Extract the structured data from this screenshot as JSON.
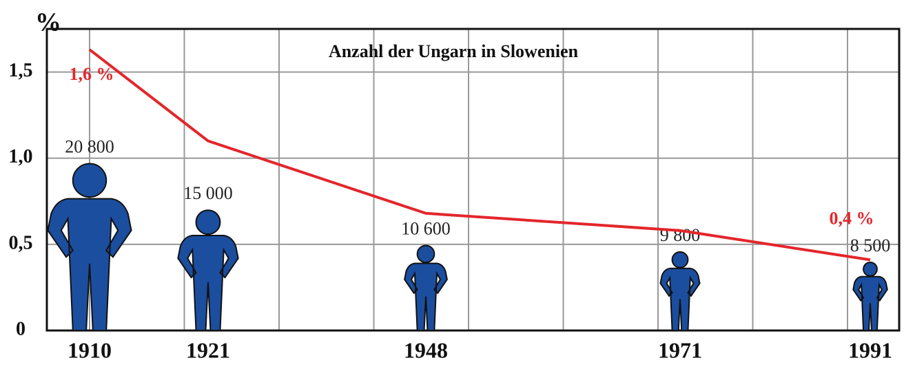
{
  "chart_data": {
    "type": "line",
    "title": "Anzahl der Ungarn in Slowenien",
    "y_label": "%",
    "categories": [
      "1910",
      "1921",
      "1948",
      "1971",
      "1991"
    ],
    "series": [
      {
        "name": "%",
        "color": "#e3262b",
        "values": [
          1.63,
          1.1,
          0.68,
          0.58,
          0.41
        ],
        "value_labels": [
          "1,6 %",
          null,
          null,
          null,
          "0,4 %"
        ]
      },
      {
        "name": "Ungarn",
        "color": "#1b4e9e",
        "values": [
          20800,
          15000,
          10600,
          9800,
          8500
        ],
        "value_labels": [
          "20 800",
          "15 000",
          "10 600",
          "9 800",
          "8 500"
        ]
      }
    ],
    "ylim": [
      0,
      1.75
    ],
    "yticks": [
      0,
      {
        "value": 0.5,
        "label": "0,5"
      },
      {
        "value": 1,
        "label": "1,0"
      },
      {
        "value": 1.5,
        "label": "1,5"
      }
    ],
    "grid": true
  }
}
